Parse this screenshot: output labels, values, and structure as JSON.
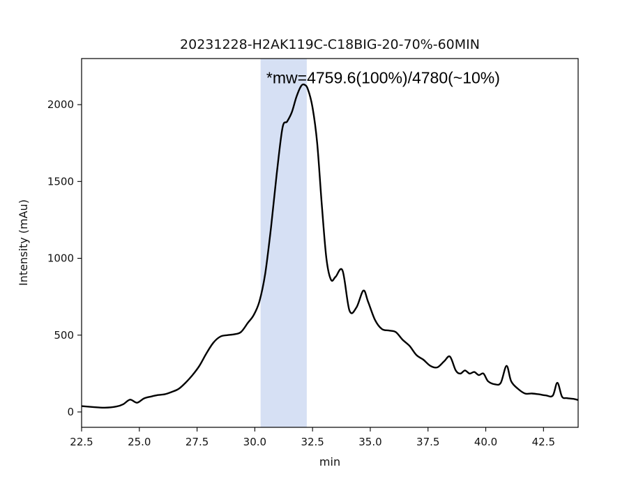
{
  "chart_data": {
    "type": "line",
    "title": "20231228-H2AK119C-C18BIG-20-70%-60MIN",
    "xlabel": "min",
    "ylabel": "Intensity (mAu)",
    "xlim": [
      22.5,
      44.0
    ],
    "ylim": [
      -100,
      2300
    ],
    "xticks": [
      22.5,
      25.0,
      27.5,
      30.0,
      32.5,
      35.0,
      37.5,
      40.0,
      42.5
    ],
    "xtick_labels": [
      "22.5",
      "25.0",
      "27.5",
      "30.0",
      "32.5",
      "35.0",
      "37.5",
      "40.0",
      "42.5"
    ],
    "yticks": [
      0,
      500,
      1000,
      1500,
      2000
    ],
    "ytick_labels": [
      "0",
      "500",
      "1000",
      "1500",
      "2000"
    ],
    "grid": false,
    "highlight_span": {
      "x0": 30.25,
      "x1": 32.25,
      "color": "#d6e0f4"
    },
    "annotation": {
      "text": "*mw=4759.6(100%)/4780(~10%)",
      "x": 30.5,
      "y": 2140
    },
    "line_color": "#000000",
    "series": [
      {
        "x": [
          22.5,
          23.0,
          23.5,
          24.0,
          24.3,
          24.6,
          24.9,
          25.2,
          25.5,
          25.8,
          26.1,
          26.4,
          26.7,
          27.0,
          27.3,
          27.6,
          27.9,
          28.2,
          28.5,
          28.8,
          29.1,
          29.4,
          29.7,
          29.95,
          30.2,
          30.45,
          30.7,
          30.95,
          31.2,
          31.4,
          31.6,
          31.8,
          32.0,
          32.15,
          32.3,
          32.5,
          32.7,
          32.9,
          33.1,
          33.3,
          33.5,
          33.8,
          34.1,
          34.4,
          34.7,
          34.9,
          35.2,
          35.5,
          35.8,
          36.1,
          36.4,
          36.7,
          37.0,
          37.3,
          37.6,
          37.9,
          38.2,
          38.45,
          38.7,
          38.9,
          39.1,
          39.3,
          39.5,
          39.7,
          39.9,
          40.1,
          40.4,
          40.65,
          40.9,
          41.1,
          41.4,
          41.7,
          42.0,
          42.3,
          42.6,
          42.9,
          43.1,
          43.3,
          43.5,
          43.8,
          44.0
        ],
        "y": [
          38,
          32,
          28,
          35,
          50,
          80,
          60,
          88,
          100,
          110,
          115,
          130,
          150,
          190,
          240,
          300,
          380,
          450,
          490,
          500,
          505,
          520,
          580,
          630,
          720,
          900,
          1200,
          1550,
          1850,
          1890,
          1950,
          2050,
          2120,
          2130,
          2100,
          1980,
          1750,
          1350,
          1000,
          860,
          880,
          920,
          660,
          680,
          790,
          720,
          600,
          540,
          530,
          520,
          470,
          430,
          370,
          340,
          300,
          290,
          330,
          360,
          270,
          250,
          270,
          250,
          260,
          240,
          250,
          200,
          180,
          190,
          300,
          200,
          150,
          120,
          120,
          115,
          108,
          106,
          190,
          100,
          90,
          85,
          78
        ]
      }
    ]
  }
}
